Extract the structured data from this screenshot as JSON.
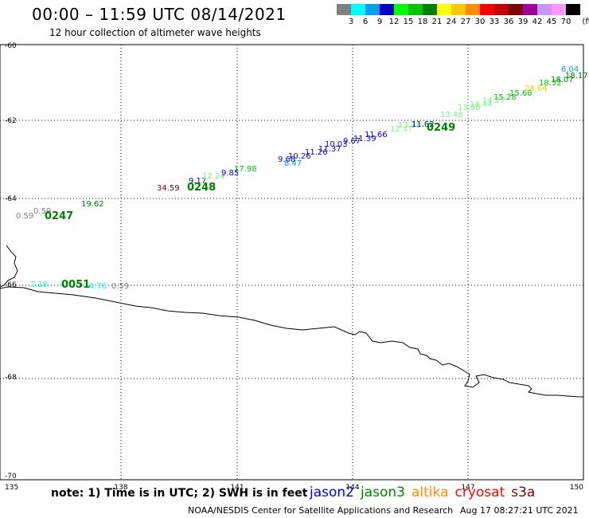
{
  "header": {
    "title": "00:00 – 11:59 UTC 08/14/2021",
    "subtitle": "12 hour collection of altimeter wave heights"
  },
  "color_scale": {
    "unit": "(ft)",
    "steps": [
      {
        "label": "3",
        "color": "#808080"
      },
      {
        "label": "6",
        "color": "#00ffff"
      },
      {
        "label": "9",
        "color": "#00a0f0"
      },
      {
        "label": "12",
        "color": "#0000c8"
      },
      {
        "label": "15",
        "color": "#00ff00"
      },
      {
        "label": "18",
        "color": "#00c800"
      },
      {
        "label": "21",
        "color": "#008000"
      },
      {
        "label": "24",
        "color": "#ffff00"
      },
      {
        "label": "27",
        "color": "#ffc800"
      },
      {
        "label": "30",
        "color": "#ff8c00"
      },
      {
        "label": "33",
        "color": "#ff0000"
      },
      {
        "label": "36",
        "color": "#c80000"
      },
      {
        "label": "39",
        "color": "#800000"
      },
      {
        "label": "42",
        "color": "#a000a0"
      },
      {
        "label": "45",
        "color": "#c896ff"
      },
      {
        "label": "70",
        "color": "#ff96ff"
      },
      {
        "label": "",
        "color": "#000000"
      }
    ]
  },
  "axes": {
    "lat_labels": [
      "-60",
      "-62",
      "-64",
      "-66",
      "-68",
      "-70"
    ],
    "lon_labels": [
      "135",
      "138",
      "141",
      "144",
      "147",
      "150"
    ]
  },
  "passes": [
    {
      "label": "0248",
      "color": "#008000"
    },
    {
      "label": "0249",
      "color": "#008000"
    },
    {
      "label": "0247",
      "color": "#008000"
    },
    {
      "label": "0051",
      "color": "#008000"
    }
  ],
  "wave_heights": [
    {
      "v": "34.59",
      "c": "#800000"
    },
    {
      "v": "9.17",
      "c": "#0000c8"
    },
    {
      "v": "12.24",
      "c": "#7cf07c"
    },
    {
      "v": "9.85",
      "c": "#0000c8"
    },
    {
      "v": "17.98",
      "c": "#00c800"
    },
    {
      "v": "8.47",
      "c": "#00a0f0"
    },
    {
      "v": "9.68",
      "c": "#0000c8"
    },
    {
      "v": "10.26",
      "c": "#0000c8"
    },
    {
      "v": "11.26",
      "c": "#0000c8"
    },
    {
      "v": "11.37",
      "c": "#0000c8"
    },
    {
      "v": "10.03",
      "c": "#0000c8"
    },
    {
      "v": "9.67",
      "c": "#0000c8"
    },
    {
      "v": "11.39",
      "c": "#0000c8"
    },
    {
      "v": "11.66",
      "c": "#0000c8"
    },
    {
      "v": "12.47",
      "c": "#7cf07c"
    },
    {
      "v": "13.18",
      "c": "#7cf07c"
    },
    {
      "v": "11.62",
      "c": "#0000c8"
    },
    {
      "v": "13.48",
      "c": "#7cf07c"
    },
    {
      "v": "13.98",
      "c": "#7cf07c"
    },
    {
      "v": "14.44",
      "c": "#7cf07c"
    },
    {
      "v": "14.27",
      "c": "#7cf07c"
    },
    {
      "v": "15.28",
      "c": "#00c800"
    },
    {
      "v": "15.68",
      "c": "#00c800"
    },
    {
      "v": "24.64",
      "c": "#ffc800"
    },
    {
      "v": "18.32",
      "c": "#00c800"
    },
    {
      "v": "18.07",
      "c": "#008000"
    },
    {
      "v": "18.17",
      "c": "#008000"
    },
    {
      "v": "6.04",
      "c": "#00a0f0"
    },
    {
      "v": "0.59",
      "c": "#808080"
    },
    {
      "v": "0.59",
      "c": "#808080"
    },
    {
      "v": "19.62",
      "c": "#008000"
    },
    {
      "v": "2.16",
      "c": "#00ffff"
    },
    {
      "v": "4.76",
      "c": "#00ffff"
    },
    {
      "v": "0.59",
      "c": "#808080"
    }
  ],
  "footer": {
    "note": "note: 1) Time is in UTC; 2) SWH is in feet",
    "missions": [
      {
        "name": "jason2",
        "color": "#0000ff"
      },
      {
        "name": "jason3",
        "color": "#008000"
      },
      {
        "name": "altika",
        "color": "#ff8c00"
      },
      {
        "name": "cryosat",
        "color": "#ff0000"
      },
      {
        "name": "s3a",
        "color": "#800000"
      }
    ],
    "credit": "NOAA/NESDIS Center for Satellite Applications and Research",
    "timestamp": "Aug 17 08:27:21 UTC 2021"
  }
}
